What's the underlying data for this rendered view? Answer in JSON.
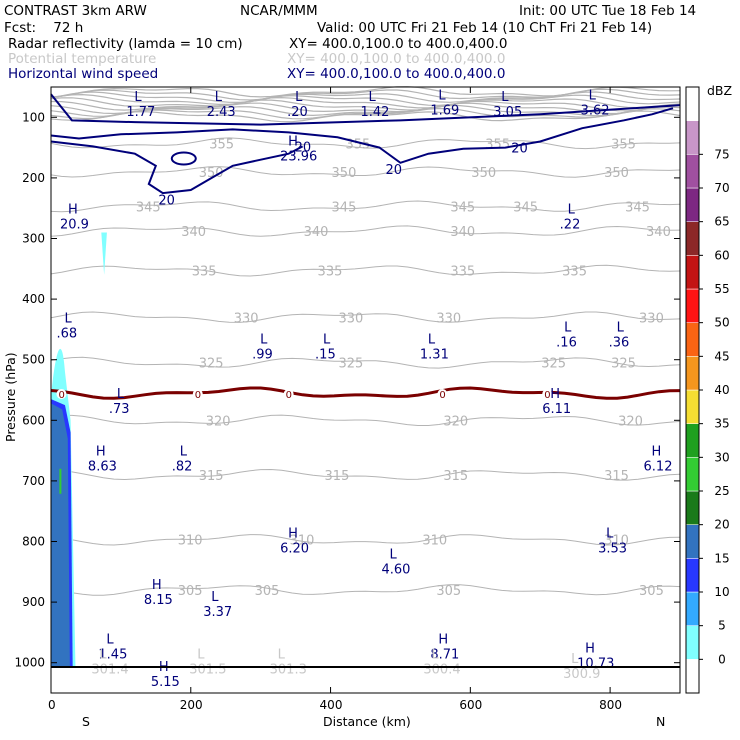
{
  "header": {
    "line1_left": "CONTRAST  3km ARW",
    "line1_center": "NCAR/MMM",
    "line1_right": "Init: 00 UTC Tue 18 Feb 14",
    "line2_left": "Fcst:    72 h",
    "line2_right": "Valid: 00 UTC Fri 21 Feb 14 (10 ChT Fri 21 Feb 14)",
    "fields": [
      {
        "name": "Radar reflectivity (lamda = 10 cm)",
        "xy": "XY= 400.0,100.0 to 400.0,400.0",
        "color": "#000000"
      },
      {
        "name": "Potential temperature",
        "xy": "XY= 400.0,100.0 to 400.0,400.0",
        "color": "#c8c8c8"
      },
      {
        "name": "Horizontal wind speed",
        "xy": "XY= 400.0,100.0 to 400.0,400.0",
        "color": "#00007a"
      }
    ]
  },
  "chart_data": {
    "type": "cross-section contour",
    "xlabel": "Distance (km)",
    "ylabel": "Pressure (hPa)",
    "xlim": [
      0,
      900
    ],
    "ylim": [
      1050,
      50
    ],
    "x_ticks": [
      0,
      200,
      400,
      600,
      800
    ],
    "y_ticks": [
      100,
      200,
      300,
      400,
      500,
      600,
      700,
      800,
      900,
      1000
    ],
    "x_end_labels": {
      "left": "S",
      "right": "N"
    },
    "surface_pressure": 1007,
    "colorbar": {
      "title": "dBZ",
      "levels": [
        0,
        5,
        10,
        15,
        20,
        25,
        30,
        35,
        40,
        45,
        50,
        55,
        60,
        65,
        70,
        75
      ],
      "colors": [
        "#ffffff",
        "#80ffff",
        "#33aaff",
        "#2838ff",
        "#3273c0",
        "#1a7a1a",
        "#33cc33",
        "#1fa01f",
        "#f5de32",
        "#f5961e",
        "#fa6414",
        "#ff1414",
        "#c31414",
        "#8c2828",
        "#7d2882",
        "#a050a0",
        "#c896c8",
        "#ffffff"
      ]
    },
    "theta_contours": [
      {
        "level": 355,
        "label_x": [
          245,
          440,
          640,
          820
        ]
      },
      {
        "level": 350,
        "label_x": [
          230,
          420,
          620,
          810
        ]
      },
      {
        "level": 345,
        "label_x": [
          140,
          420,
          590,
          680,
          840
        ]
      },
      {
        "level": 340,
        "label_x": [
          205,
          380,
          590,
          870
        ]
      },
      {
        "level": 335,
        "label_x": [
          220,
          400,
          590,
          750
        ]
      },
      {
        "level": 330,
        "label_x": [
          280,
          430,
          570,
          860
        ]
      },
      {
        "level": 325,
        "label_x": [
          230,
          430,
          720,
          820
        ]
      },
      {
        "level": 320,
        "label_x": [
          240,
          580,
          830
        ]
      },
      {
        "level": 315,
        "label_x": [
          230,
          410,
          580,
          810
        ]
      },
      {
        "level": 310,
        "label_x": [
          200,
          360,
          550,
          810
        ]
      },
      {
        "level": 305,
        "label_x": [
          200,
          310,
          570,
          860
        ]
      }
    ],
    "zero_contour": {
      "pressure": 555,
      "label_x": [
        15,
        210,
        340,
        560,
        710
      ]
    },
    "wind_labels": [
      {
        "text": "20",
        "x": 360,
        "p": 148
      },
      {
        "text": "20",
        "x": 490,
        "p": 185
      },
      {
        "text": "20",
        "x": 670,
        "p": 150
      },
      {
        "text": "20",
        "x": 165,
        "p": 236
      }
    ],
    "extrema": [
      {
        "kind": "L",
        "value": "1.77",
        "x": 125,
        "p": 80,
        "color": "#00007a"
      },
      {
        "kind": "L",
        "value": "2.43",
        "x": 240,
        "p": 80,
        "color": "#00007a"
      },
      {
        "kind": "L",
        "value": ".20",
        "x": 355,
        "p": 80,
        "color": "#00007a"
      },
      {
        "kind": "L",
        "value": "1.42",
        "x": 460,
        "p": 80,
        "color": "#00007a"
      },
      {
        "kind": "L",
        "value": "1.69",
        "x": 560,
        "p": 77,
        "color": "#00007a"
      },
      {
        "kind": "L",
        "value": "3.05",
        "x": 650,
        "p": 80,
        "color": "#00007a"
      },
      {
        "kind": "L",
        "value": "3.62",
        "x": 775,
        "p": 77,
        "color": "#00007a"
      },
      {
        "kind": "H",
        "value": "23.96",
        "x": 345,
        "p": 153,
        "color": "#00007a"
      },
      {
        "kind": "H",
        "value": "20.9",
        "x": 30,
        "p": 265,
        "color": "#00007a"
      },
      {
        "kind": "L",
        "value": ".22",
        "x": 745,
        "p": 265,
        "color": "#00007a"
      },
      {
        "kind": "L",
        "value": ".68",
        "x": 25,
        "p": 445,
        "color": "#00007a"
      },
      {
        "kind": "L",
        "value": ".99",
        "x": 305,
        "p": 480,
        "color": "#00007a"
      },
      {
        "kind": "L",
        "value": ".15",
        "x": 395,
        "p": 480,
        "color": "#00007a"
      },
      {
        "kind": "L",
        "value": "1.31",
        "x": 545,
        "p": 480,
        "color": "#00007a"
      },
      {
        "kind": "L",
        "value": ".16",
        "x": 740,
        "p": 460,
        "color": "#00007a"
      },
      {
        "kind": "L",
        "value": ".36",
        "x": 815,
        "p": 460,
        "color": "#00007a"
      },
      {
        "kind": "L",
        "value": ".73",
        "x": 100,
        "p": 570,
        "color": "#00007a"
      },
      {
        "kind": "H",
        "value": "6.11",
        "x": 720,
        "p": 570,
        "color": "#00007a"
      },
      {
        "kind": "H",
        "value": "8.63",
        "x": 70,
        "p": 665,
        "color": "#00007a"
      },
      {
        "kind": "L",
        "value": ".82",
        "x": 190,
        "p": 665,
        "color": "#00007a"
      },
      {
        "kind": "H",
        "value": "6.12",
        "x": 865,
        "p": 665,
        "color": "#00007a"
      },
      {
        "kind": "H",
        "value": "6.20",
        "x": 345,
        "p": 800,
        "color": "#00007a"
      },
      {
        "kind": "L",
        "value": "3.53",
        "x": 800,
        "p": 800,
        "color": "#00007a"
      },
      {
        "kind": "L",
        "value": "4.60",
        "x": 490,
        "p": 835,
        "color": "#00007a"
      },
      {
        "kind": "H",
        "value": "8.15",
        "x": 150,
        "p": 885,
        "color": "#00007a"
      },
      {
        "kind": "L",
        "value": "3.37",
        "x": 235,
        "p": 905,
        "color": "#00007a"
      },
      {
        "kind": "L",
        "value": "1.45",
        "x": 85,
        "p": 975,
        "color": "#00007a"
      },
      {
        "kind": "H",
        "value": "8.71",
        "x": 560,
        "p": 975,
        "color": "#00007a"
      },
      {
        "kind": "H",
        "value": "10.73",
        "x": 770,
        "p": 990,
        "color": "#00007a"
      },
      {
        "kind": "H",
        "value": "5.15",
        "x": 160,
        "p": 1020,
        "color": "#00007a"
      },
      {
        "kind": "L",
        "value": "301.4",
        "x": 75,
        "p": 1000,
        "color": "#c8c8c8"
      },
      {
        "kind": "L",
        "value": "301.5",
        "x": 215,
        "p": 1000,
        "color": "#c8c8c8"
      },
      {
        "kind": "L",
        "value": "301.3",
        "x": 330,
        "p": 1000,
        "color": "#c8c8c8"
      },
      {
        "kind": "L",
        "value": "300.4",
        "x": 550,
        "p": 1000,
        "color": "#c8c8c8"
      },
      {
        "kind": "L",
        "value": "300.9",
        "x": 750,
        "p": 1007,
        "color": "#c8c8c8"
      }
    ],
    "colors": {
      "wind": "#00007a",
      "theta": "#b4b4b4",
      "zero": "#7a0000",
      "echo_core": "#3273c0",
      "echo_edge": "#2838ff",
      "echo_light": "#80ffff"
    }
  }
}
